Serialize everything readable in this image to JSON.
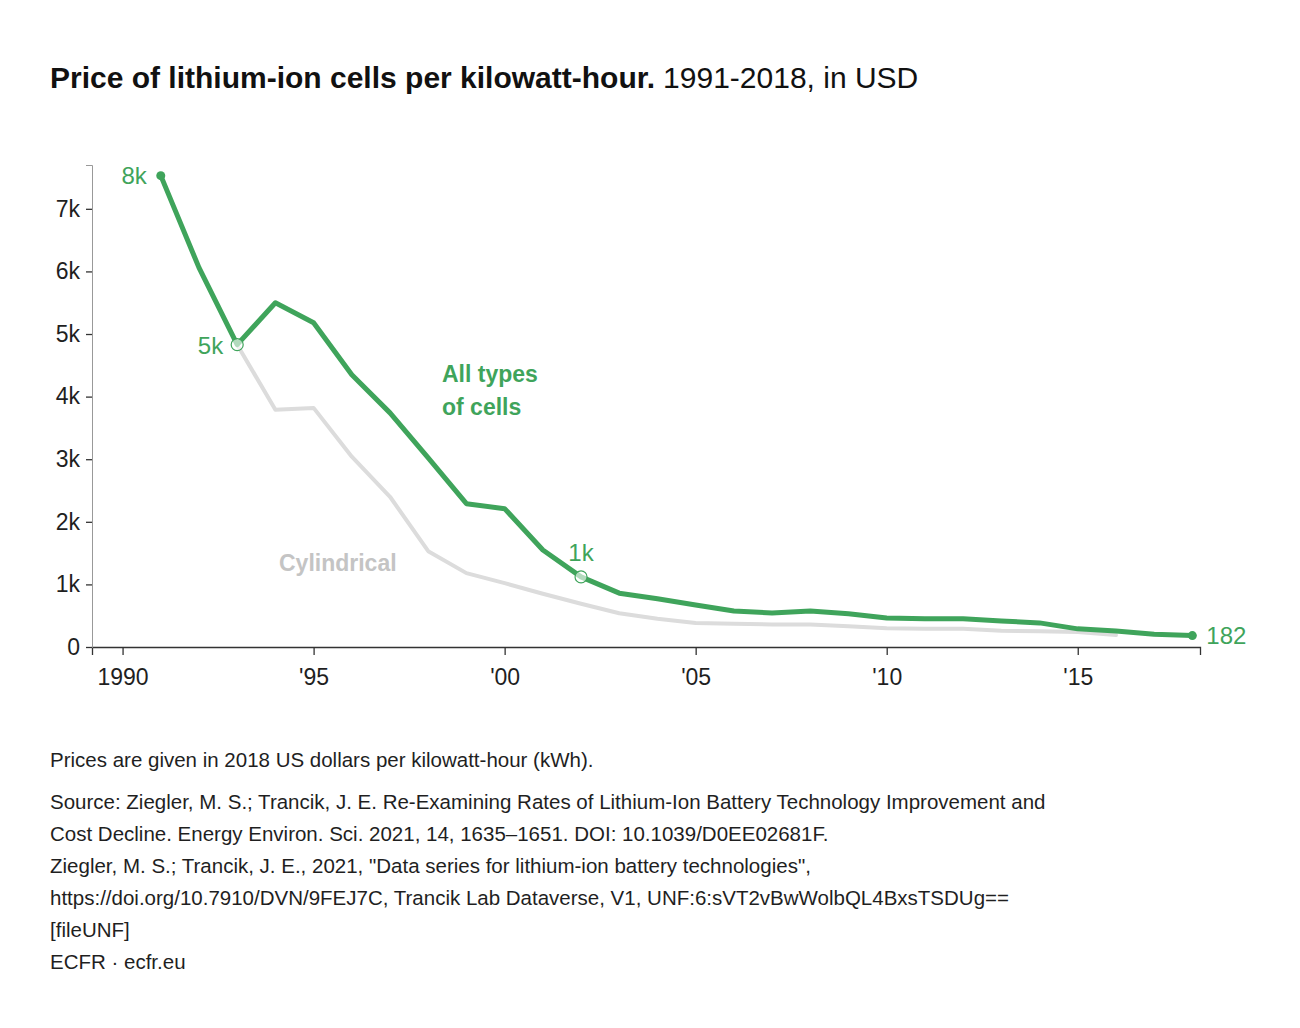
{
  "chart_data": {
    "type": "line",
    "title": "Price of lithium-ion cells per kilowatt-hour.",
    "subtitle": "1991-2018, in USD",
    "x": [
      1991,
      1992,
      1993,
      1994,
      1995,
      1996,
      1997,
      1998,
      1999,
      2000,
      2001,
      2002,
      2003,
      2004,
      2005,
      2006,
      2007,
      2008,
      2009,
      2010,
      2011,
      2012,
      2013,
      2014,
      2015,
      2016,
      2017,
      2018
    ],
    "series": [
      {
        "name": "All types of cells",
        "color": "#3fa45b",
        "values": [
          7530,
          6060,
          4830,
          5500,
          5180,
          4350,
          3740,
          3020,
          2290,
          2210,
          1550,
          1120,
          860,
          770,
          670,
          575,
          545,
          575,
          530,
          465,
          450,
          450,
          415,
          385,
          290,
          255,
          205,
          182
        ]
      },
      {
        "name": "Cylindrical",
        "color": "#dcdcdc",
        "values": [
          null,
          null,
          4830,
          3790,
          3820,
          3040,
          2400,
          1530,
          1180,
          1020,
          850,
          690,
          540,
          450,
          385,
          370,
          360,
          360,
          330,
          300,
          290,
          290,
          260,
          250,
          240,
          190,
          null,
          null
        ]
      }
    ],
    "annotations": [
      {
        "x": 1991,
        "y": 7530,
        "text": "8k",
        "marker": "dot"
      },
      {
        "x": 1993,
        "y": 4830,
        "text": "5k",
        "marker": "circle"
      },
      {
        "x": 2002,
        "y": 1120,
        "text": "1k",
        "marker": "circle"
      },
      {
        "x": 2018,
        "y": 182,
        "text": "182",
        "marker": "dot"
      }
    ],
    "xlim": [
      1989.2,
      2018.2
    ],
    "xticks": [
      1990,
      {
        "value": 1995,
        "label": "'95"
      },
      {
        "value": 2000,
        "label": "'00"
      },
      {
        "value": 2005,
        "label": "'05"
      },
      {
        "value": 2010,
        "label": "'10"
      },
      {
        "value": 2015,
        "label": "'15"
      }
    ],
    "ylim": [
      0,
      7700
    ],
    "yticks": [
      0,
      {
        "value": 1000,
        "label": "1k"
      },
      {
        "value": 2000,
        "label": "2k"
      },
      {
        "value": 3000,
        "label": "3k"
      },
      {
        "value": 4000,
        "label": "4k"
      },
      {
        "value": 5000,
        "label": "5k"
      },
      {
        "value": 6000,
        "label": "6k"
      },
      {
        "value": 7000,
        "label": "7k"
      }
    ],
    "grid": false,
    "note": "Prices are given in 2018 US dollars per kilowatt-hour (kWh).",
    "source": [
      "Source: Ziegler, M. S.; Trancik, J. E. Re-Examining Rates of Lithium-Ion Battery Technology Improvement and",
      "Cost Decline. Energy Environ. Sci. 2021, 14, 1635–1651. DOI: 10.1039/D0EE02681F.",
      "Ziegler, M. S.; Trancik, J. E., 2021, \"Data series for lithium-ion battery technologies\",",
      "https://doi.org/10.7910/DVN/9FEJ7C, Trancik Lab Dataverse, V1, UNF:6:sVT2vBwWolbQL4BxsTSDUg==",
      "[fileUNF]"
    ],
    "credit": "ECFR · ecfr.eu"
  }
}
